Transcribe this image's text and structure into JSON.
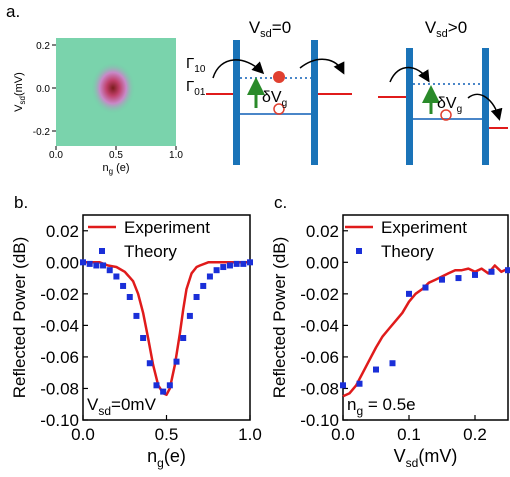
{
  "panels": {
    "a": "a.",
    "b": "b.",
    "c": "c."
  },
  "colors": {
    "experiment": "#e01b1b",
    "theory": "#1a2fd8",
    "barrier": "#1a73b8",
    "level": "#4a86c8",
    "dot": "#e04030",
    "arrow": "#2a8a2a",
    "heat_bg": "#6fcfa6"
  },
  "schematic": {
    "gamma10": "Γ",
    "gamma10_sub": "10",
    "gamma01": "Γ",
    "gamma01_sub": "01",
    "left_title_main": "V",
    "left_title_sub": "sd",
    "left_title_rest": "=0",
    "right_title_main": "V",
    "right_title_sub": "sd",
    "right_title_rest": ">0",
    "delta_main": "δV",
    "delta_sub": "g"
  },
  "inset": {
    "ylabel_main": "V",
    "ylabel_sub": "sd",
    "ylabel_rest": "(mV)",
    "xlabel_main": "n",
    "xlabel_sub": "g",
    "xlabel_rest": " (e)",
    "xticks": [
      "0.0",
      "0.5",
      "1.0"
    ],
    "yticks": [
      "0.2",
      "0.0",
      "-0.2"
    ]
  },
  "chart_data": [
    {
      "type": "line",
      "ylabel": "Reflected Power (dB)",
      "xlabel_main": "n",
      "xlabel_sub": "g",
      "xlabel_rest": "(e)",
      "annotation_main": "V",
      "annotation_sub": "sd",
      "annotation_rest": "=0mV",
      "xlim": [
        0,
        1
      ],
      "ylim": [
        -0.1,
        0.03
      ],
      "xticks": [
        0.0,
        0.5,
        1.0
      ],
      "xtick_labels": [
        "0.0",
        "0.5",
        "1.0"
      ],
      "yticks": [
        0.02,
        0.0,
        -0.02,
        -0.04,
        -0.06,
        -0.08,
        -0.1
      ],
      "ytick_labels": [
        "0.02",
        "0.00",
        "-0.02",
        "-0.04",
        "-0.06",
        "-0.08",
        "-0.10"
      ],
      "legend": "top-right",
      "series": [
        {
          "name": "Experiment",
          "style": "line",
          "x": [
            0.0,
            0.05,
            0.1,
            0.15,
            0.2,
            0.25,
            0.3,
            0.33,
            0.36,
            0.39,
            0.42,
            0.45,
            0.48,
            0.5,
            0.52,
            0.55,
            0.58,
            0.6,
            0.62,
            0.65,
            0.68,
            0.7,
            0.75,
            0.8,
            0.85,
            0.9,
            0.95,
            1.0
          ],
          "y": [
            0.0,
            0.0,
            0.0,
            -0.002,
            -0.003,
            -0.006,
            -0.012,
            -0.02,
            -0.032,
            -0.048,
            -0.065,
            -0.078,
            -0.083,
            -0.084,
            -0.08,
            -0.065,
            -0.045,
            -0.03,
            -0.017,
            -0.007,
            -0.003,
            -0.002,
            0.0,
            0.0,
            0.0,
            0.0,
            0.0,
            0.0
          ]
        },
        {
          "name": "Theory",
          "style": "marker",
          "x": [
            0.0,
            0.04,
            0.08,
            0.12,
            0.16,
            0.2,
            0.24,
            0.28,
            0.32,
            0.36,
            0.4,
            0.44,
            0.48,
            0.52,
            0.56,
            0.6,
            0.64,
            0.68,
            0.72,
            0.76,
            0.8,
            0.84,
            0.88,
            0.92,
            0.96,
            1.0
          ],
          "y": [
            0.0,
            -0.001,
            -0.002,
            -0.002,
            -0.005,
            -0.009,
            -0.015,
            -0.022,
            -0.034,
            -0.048,
            -0.064,
            -0.078,
            -0.082,
            -0.078,
            -0.063,
            -0.048,
            -0.034,
            -0.022,
            -0.015,
            -0.009,
            -0.005,
            -0.003,
            -0.002,
            -0.001,
            -0.001,
            0.0
          ]
        }
      ]
    },
    {
      "type": "line",
      "ylabel": "Reflected Power (dB)",
      "xlabel_main": "V",
      "xlabel_sub": "sd",
      "xlabel_rest": "(mV)",
      "annotation_main": "n",
      "annotation_sub": "g",
      "annotation_rest": " = 0.5e",
      "xlim": [
        0,
        0.25
      ],
      "ylim": [
        -0.1,
        0.03
      ],
      "xticks": [
        0.0,
        0.1,
        0.2
      ],
      "xtick_labels": [
        "0.0",
        "0.1",
        "0.2"
      ],
      "yticks": [
        0.02,
        0.0,
        -0.02,
        -0.04,
        -0.06,
        -0.08,
        -0.1
      ],
      "ytick_labels": [
        "0.02",
        "0.00",
        "-0.02",
        "-0.04",
        "-0.06",
        "-0.08",
        "-0.10"
      ],
      "legend": "top-right",
      "series": [
        {
          "name": "Experiment",
          "style": "line",
          "x": [
            0.0,
            0.01,
            0.02,
            0.03,
            0.04,
            0.05,
            0.06,
            0.07,
            0.08,
            0.09,
            0.1,
            0.11,
            0.12,
            0.13,
            0.14,
            0.15,
            0.16,
            0.17,
            0.18,
            0.19,
            0.2,
            0.21,
            0.22,
            0.23,
            0.24,
            0.25
          ],
          "y": [
            -0.085,
            -0.083,
            -0.078,
            -0.07,
            -0.062,
            -0.054,
            -0.047,
            -0.042,
            -0.037,
            -0.032,
            -0.025,
            -0.02,
            -0.017,
            -0.013,
            -0.011,
            -0.009,
            -0.007,
            -0.005,
            -0.005,
            -0.004,
            -0.006,
            -0.004,
            -0.007,
            -0.002,
            -0.006,
            -0.004
          ]
        },
        {
          "name": "Theory",
          "style": "marker",
          "x": [
            0.0,
            0.025,
            0.05,
            0.075,
            0.1,
            0.125,
            0.15,
            0.175,
            0.2,
            0.225,
            0.25
          ],
          "y": [
            -0.078,
            -0.077,
            -0.068,
            -0.064,
            -0.02,
            -0.016,
            -0.011,
            -0.01,
            -0.008,
            -0.006,
            -0.005
          ]
        }
      ]
    }
  ]
}
